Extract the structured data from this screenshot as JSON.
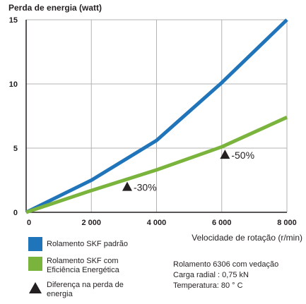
{
  "chart_data": {
    "type": "line",
    "ylabel": "Perda de energia (watt)",
    "xlabel": "Velocidade de rotação (r/min)",
    "xlim": [
      0,
      8000
    ],
    "ylim": [
      0,
      15
    ],
    "x_ticks": [
      "0",
      "2 000",
      "4 000",
      "6 000",
      "8 000"
    ],
    "x_tick_values": [
      0,
      2000,
      4000,
      6000,
      8000
    ],
    "y_ticks": [
      "0",
      "5",
      "10",
      "15"
    ],
    "y_tick_values": [
      0,
      5,
      10,
      15
    ],
    "grid": "vertical and horizontal at major ticks",
    "series": [
      {
        "name": "Rolamento SKF padrão",
        "color": "#1f74ba",
        "x": [
          0,
          2000,
          4000,
          6000,
          8000
        ],
        "y": [
          0,
          2.5,
          5.6,
          10.1,
          15
        ]
      },
      {
        "name": "Rolamento SKF com Eficiência Energética",
        "color": "#7ab43c",
        "x": [
          0,
          2000,
          4000,
          6000,
          8000
        ],
        "y": [
          0,
          1.7,
          3.3,
          5.1,
          7.4
        ]
      }
    ],
    "annotations": [
      {
        "label": "-30%",
        "x": 3100,
        "y": 2.0
      },
      {
        "label": "-50%",
        "x": 6100,
        "y": 4.5
      }
    ]
  },
  "legend": {
    "items": [
      {
        "label": "Rolamento SKF padrão",
        "color": "#1f74ba",
        "symbol": "square"
      },
      {
        "label": "Rolamento SKF com Eficiência Energética",
        "color": "#7ab43c",
        "symbol": "square"
      },
      {
        "label": "Diferença na perda de energia",
        "color": "#231f20",
        "symbol": "triangle"
      }
    ]
  },
  "notes": {
    "line1": "Rolamento 6306 com vedação",
    "line2": "Carga radial : 0,75 kN",
    "line3": "Temperatura: 80 ° C"
  }
}
